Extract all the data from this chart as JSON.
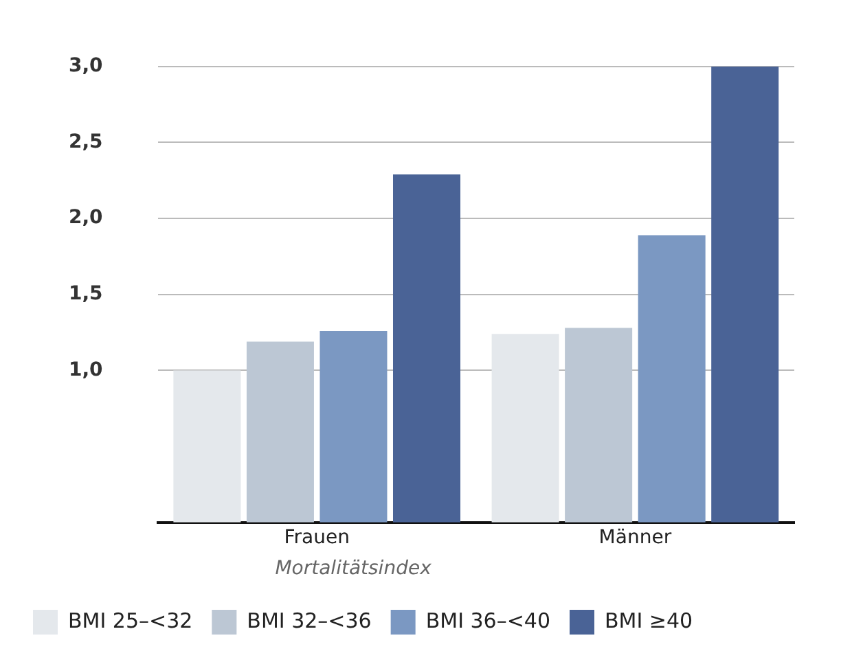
{
  "chart_data": {
    "type": "bar",
    "categories": [
      "Frauen",
      "Männer"
    ],
    "series": [
      {
        "name": "BMI 25–<32",
        "color": "#e4e8ec",
        "values": [
          1.0,
          1.24
        ]
      },
      {
        "name": "BMI 32–<36",
        "color": "#bcc7d4",
        "values": [
          1.19,
          1.28
        ]
      },
      {
        "name": "BMI 36–<40",
        "color": "#7b98c2",
        "values": [
          1.26,
          1.89
        ]
      },
      {
        "name": "BMI ≥40",
        "color": "#4a6396",
        "values": [
          2.29,
          3.0
        ]
      }
    ],
    "legend_title": "Mortalitätsindex",
    "legend": "bottom",
    "ylim": [
      0,
      3
    ],
    "yticks": [
      {
        "value": 1,
        "label": "1,0"
      },
      {
        "value": 1.5,
        "label": "1,5"
      },
      {
        "value": 2,
        "label": "2,0"
      },
      {
        "value": 2.5,
        "label": "2,5"
      },
      {
        "value": 3,
        "label": "3,0"
      }
    ],
    "grid": "y"
  }
}
